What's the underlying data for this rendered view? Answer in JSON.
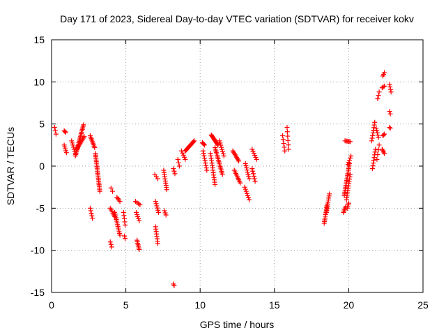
{
  "chart_data": {
    "type": "scatter",
    "title": "Day 171 of 2023, Sidereal Day-to-day VTEC variation (SDTVAR) for receiver kokv",
    "xlabel": "GPS time / hours",
    "ylabel": "SDTVAR / TECUs",
    "xlim": [
      0,
      25
    ],
    "ylim": [
      -15,
      15
    ],
    "xticks": [
      0,
      5,
      10,
      15,
      20,
      25
    ],
    "yticks": [
      -15,
      -10,
      -5,
      0,
      5,
      10,
      15
    ],
    "grid": true,
    "marker": "+",
    "color": "#ff0000",
    "segments": [
      {
        "x0": 0.2,
        "x1": 0.3,
        "y0": 4.6,
        "y1": 3.8,
        "n": 3
      },
      {
        "x0": 0.85,
        "x1": 0.95,
        "y0": 4.2,
        "y1": 4.0,
        "n": 3
      },
      {
        "x0": 0.85,
        "x1": 1.0,
        "y0": 2.5,
        "y1": 1.6,
        "n": 5
      },
      {
        "x0": 1.35,
        "x1": 1.6,
        "y0": 3.0,
        "y1": 1.5,
        "n": 7
      },
      {
        "x0": 1.6,
        "x1": 2.15,
        "y0": 1.2,
        "y1": 4.9,
        "n": 22
      },
      {
        "x0": 1.7,
        "x1": 2.2,
        "y0": 2.0,
        "y1": 3.5,
        "n": 10
      },
      {
        "x0": 2.6,
        "x1": 2.9,
        "y0": 3.6,
        "y1": 2.2,
        "n": 9
      },
      {
        "x0": 2.95,
        "x1": 3.25,
        "y0": 1.5,
        "y1": -3.0,
        "n": 24
      },
      {
        "x0": 2.6,
        "x1": 2.75,
        "y0": -5.0,
        "y1": -6.2,
        "n": 5
      },
      {
        "x0": 4.0,
        "x1": 4.1,
        "y0": -2.6,
        "y1": -3.0,
        "n": 2
      },
      {
        "x0": 3.95,
        "x1": 4.25,
        "y0": -5.0,
        "y1": -6.0,
        "n": 6
      },
      {
        "x0": 4.25,
        "x1": 4.6,
        "y0": -5.5,
        "y1": -8.2,
        "n": 14
      },
      {
        "x0": 4.4,
        "x1": 4.6,
        "y0": -3.7,
        "y1": -4.2,
        "n": 4
      },
      {
        "x0": 3.95,
        "x1": 4.05,
        "y0": -9.0,
        "y1": -9.6,
        "n": 3
      },
      {
        "x0": 4.85,
        "x1": 4.95,
        "y0": -5.5,
        "y1": -7.0,
        "n": 5
      },
      {
        "x0": 4.9,
        "x1": 4.95,
        "y0": -8.3,
        "y1": -8.6,
        "n": 2
      },
      {
        "x0": 5.65,
        "x1": 5.95,
        "y0": -4.2,
        "y1": -4.6,
        "n": 4
      },
      {
        "x0": 5.7,
        "x1": 5.9,
        "y0": -5.5,
        "y1": -6.5,
        "n": 5
      },
      {
        "x0": 5.75,
        "x1": 5.9,
        "y0": -8.8,
        "y1": -9.9,
        "n": 7
      },
      {
        "x0": 6.95,
        "x1": 7.15,
        "y0": -1.0,
        "y1": -1.5,
        "n": 3
      },
      {
        "x0": 7.0,
        "x1": 7.2,
        "y0": -4.2,
        "y1": -5.5,
        "n": 6
      },
      {
        "x0": 7.0,
        "x1": 7.15,
        "y0": -7.2,
        "y1": -9.2,
        "n": 8
      },
      {
        "x0": 7.55,
        "x1": 7.75,
        "y0": -0.5,
        "y1": -2.8,
        "n": 10
      },
      {
        "x0": 7.6,
        "x1": 7.7,
        "y0": -5.3,
        "y1": -5.8,
        "n": 3
      },
      {
        "x0": 8.2,
        "x1": 8.3,
        "y0": -0.3,
        "y1": -0.9,
        "n": 3
      },
      {
        "x0": 8.2,
        "x1": 8.25,
        "y0": -14.0,
        "y1": -14.2,
        "n": 2
      },
      {
        "x0": 8.5,
        "x1": 8.6,
        "y0": 0.8,
        "y1": 0.0,
        "n": 3
      },
      {
        "x0": 8.75,
        "x1": 9.0,
        "y0": 1.8,
        "y1": 0.8,
        "n": 5
      },
      {
        "x0": 9.0,
        "x1": 9.6,
        "y0": 1.8,
        "y1": 3.0,
        "n": 16
      },
      {
        "x0": 10.15,
        "x1": 10.3,
        "y0": 2.8,
        "y1": 2.5,
        "n": 4
      },
      {
        "x0": 10.2,
        "x1": 10.45,
        "y0": 1.8,
        "y1": -0.5,
        "n": 9
      },
      {
        "x0": 10.75,
        "x1": 11.2,
        "y0": 3.7,
        "y1": 2.5,
        "n": 14
      },
      {
        "x0": 10.7,
        "x1": 11.0,
        "y0": 1.5,
        "y1": -2.2,
        "n": 14
      },
      {
        "x0": 11.0,
        "x1": 11.5,
        "y0": 2.2,
        "y1": -1.0,
        "n": 18
      },
      {
        "x0": 11.3,
        "x1": 11.6,
        "y0": 3.0,
        "y1": 1.2,
        "n": 8
      },
      {
        "x0": 12.2,
        "x1": 12.6,
        "y0": 1.8,
        "y1": 0.6,
        "n": 9
      },
      {
        "x0": 12.3,
        "x1": 12.7,
        "y0": -0.5,
        "y1": -2.0,
        "n": 9
      },
      {
        "x0": 13.05,
        "x1": 13.3,
        "y0": 0.3,
        "y1": -1.5,
        "n": 8
      },
      {
        "x0": 13.0,
        "x1": 13.3,
        "y0": -2.5,
        "y1": -4.0,
        "n": 7
      },
      {
        "x0": 13.5,
        "x1": 13.8,
        "y0": 2.0,
        "y1": 0.8,
        "n": 6
      },
      {
        "x0": 13.5,
        "x1": 13.7,
        "y0": -0.3,
        "y1": -1.8,
        "n": 6
      },
      {
        "x0": 15.55,
        "x1": 15.7,
        "y0": 3.6,
        "y1": 1.8,
        "n": 5
      },
      {
        "x0": 15.85,
        "x1": 15.95,
        "y0": 4.6,
        "y1": 2.0,
        "n": 6
      },
      {
        "x0": 18.35,
        "x1": 18.55,
        "y0": -6.8,
        "y1": -4.5,
        "n": 12
      },
      {
        "x0": 18.5,
        "x1": 18.7,
        "y0": -5.5,
        "y1": -3.3,
        "n": 10
      },
      {
        "x0": 19.65,
        "x1": 19.8,
        "y0": -5.5,
        "y1": -4.8,
        "n": 5
      },
      {
        "x0": 19.7,
        "x1": 20.05,
        "y0": -3.5,
        "y1": 0.3,
        "n": 20
      },
      {
        "x0": 19.85,
        "x1": 20.1,
        "y0": -4.0,
        "y1": -1.0,
        "n": 12
      },
      {
        "x0": 19.9,
        "x1": 20.0,
        "y0": -5.0,
        "y1": -4.4,
        "n": 4
      },
      {
        "x0": 19.75,
        "x1": 20.1,
        "y0": 3.0,
        "y1": 2.9,
        "n": 6
      },
      {
        "x0": 19.95,
        "x1": 20.15,
        "y0": 0.2,
        "y1": 1.2,
        "n": 5
      },
      {
        "x0": 21.55,
        "x1": 21.75,
        "y0": 3.0,
        "y1": 5.2,
        "n": 8
      },
      {
        "x0": 21.6,
        "x1": 21.8,
        "y0": -0.3,
        "y1": 2.0,
        "n": 8
      },
      {
        "x0": 21.85,
        "x1": 22.0,
        "y0": 4.5,
        "y1": 3.4,
        "n": 5
      },
      {
        "x0": 21.9,
        "x1": 22.05,
        "y0": 0.8,
        "y1": 2.5,
        "n": 4
      },
      {
        "x0": 21.95,
        "x1": 22.05,
        "y0": 8.0,
        "y1": 8.8,
        "n": 3
      },
      {
        "x0": 22.25,
        "x1": 22.4,
        "y0": 2.0,
        "y1": 1.5,
        "n": 4
      },
      {
        "x0": 22.3,
        "x1": 22.4,
        "y0": 3.6,
        "y1": 3.8,
        "n": 3
      },
      {
        "x0": 22.25,
        "x1": 22.4,
        "y0": 9.3,
        "y1": 9.5,
        "n": 3
      },
      {
        "x0": 22.3,
        "x1": 22.4,
        "y0": 10.7,
        "y1": 11.1,
        "n": 3
      },
      {
        "x0": 22.75,
        "x1": 22.85,
        "y0": 9.7,
        "y1": 8.8,
        "n": 4
      },
      {
        "x0": 22.75,
        "x1": 22.8,
        "y0": 6.5,
        "y1": 6.2,
        "n": 2
      },
      {
        "x0": 22.75,
        "x1": 22.8,
        "y0": 4.6,
        "y1": 4.5,
        "n": 2
      }
    ]
  }
}
